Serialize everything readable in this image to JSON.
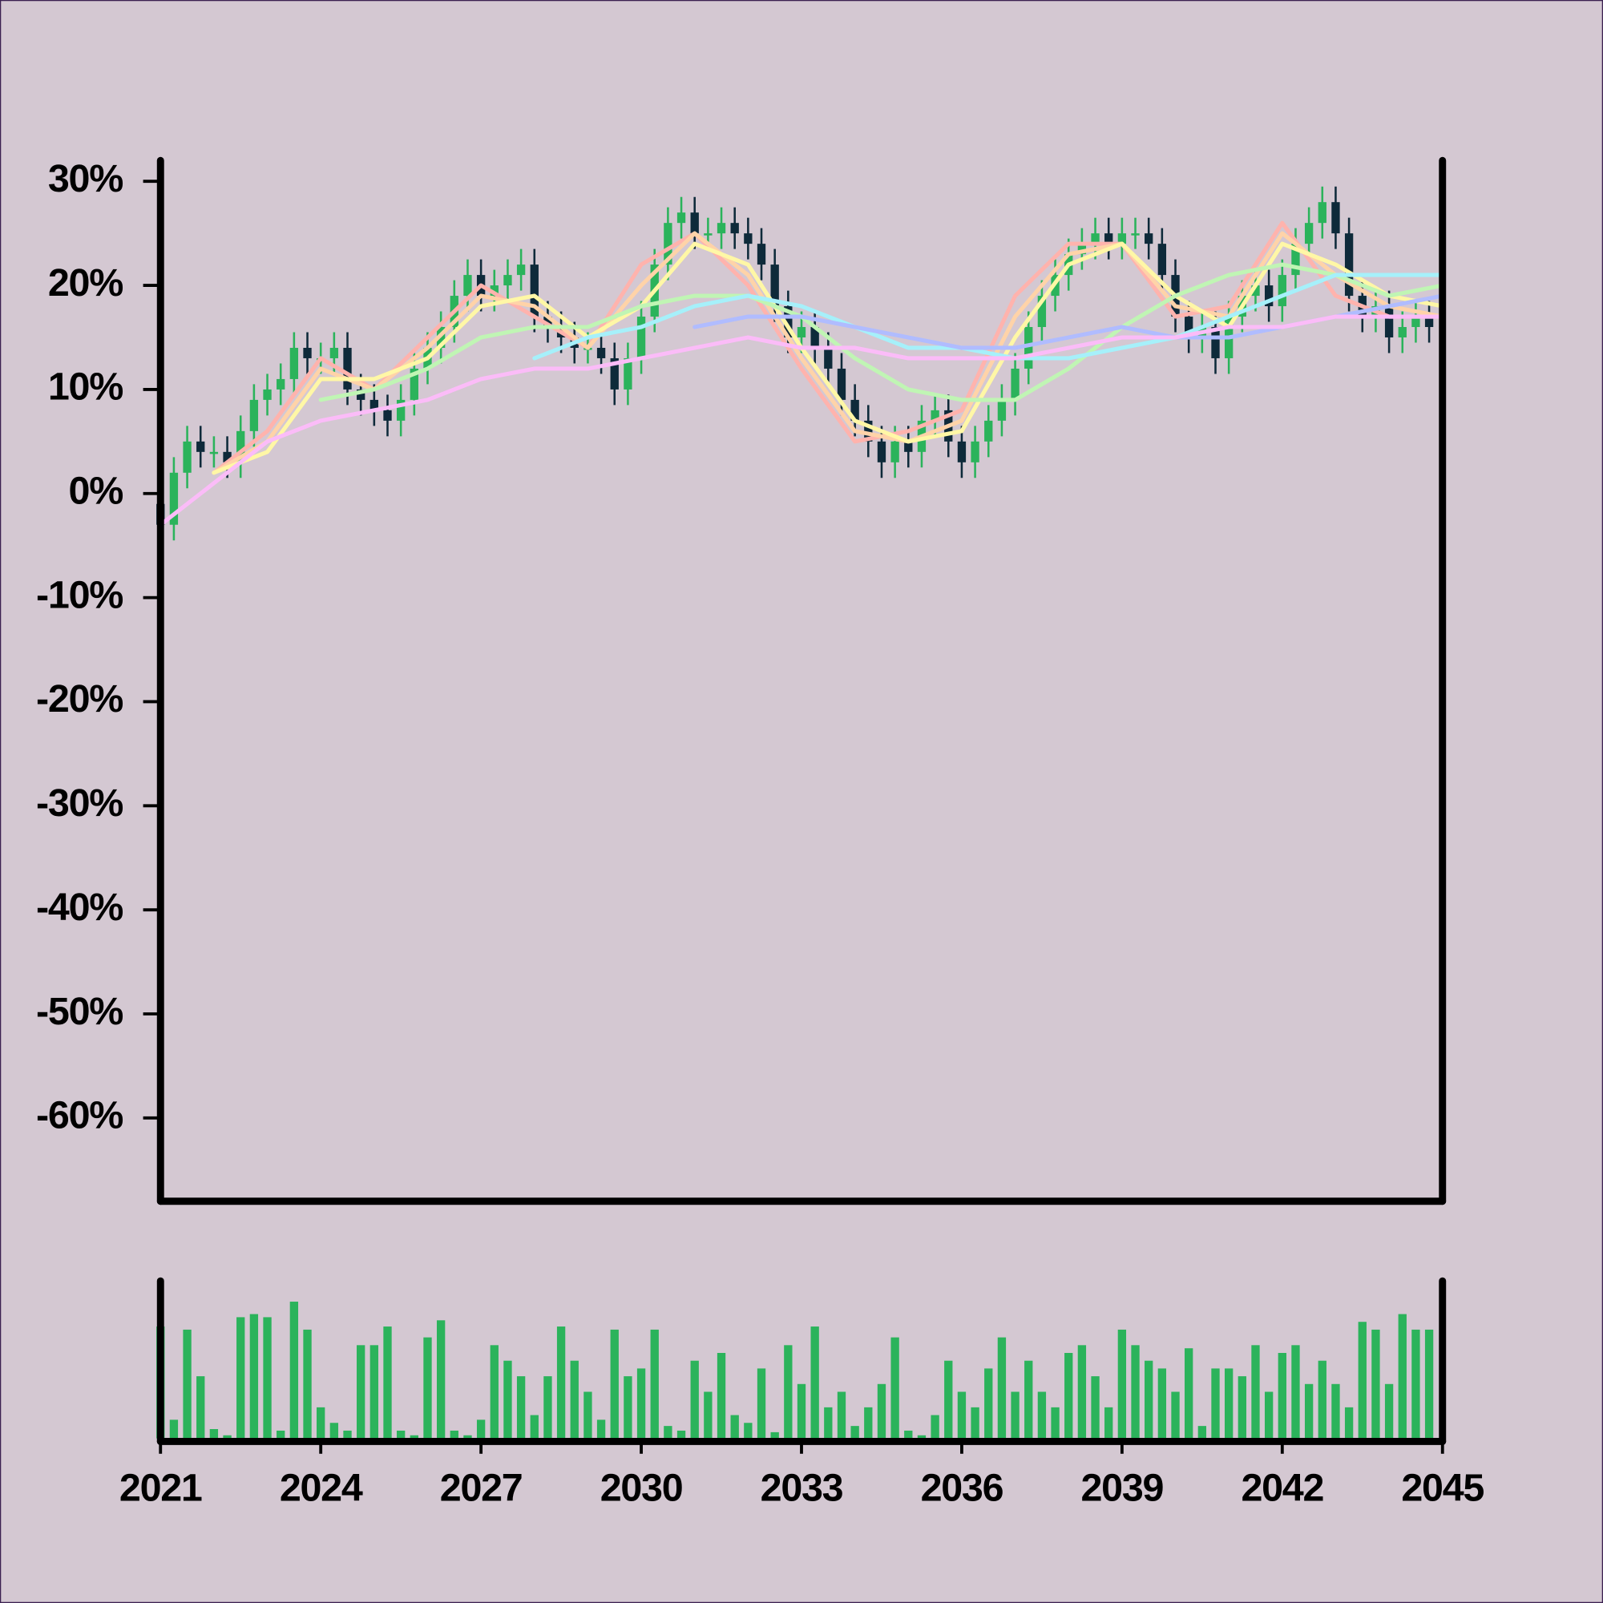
{
  "chart_data": {
    "type": "candlestick",
    "xlim": [
      2021,
      2045
    ],
    "xticks": [
      2021,
      2024,
      2027,
      2030,
      2033,
      2036,
      2039,
      2042,
      2045
    ],
    "ylim": [
      -68,
      32
    ],
    "yticks": [
      {
        "value": 30,
        "label": "30%"
      },
      {
        "value": 20,
        "label": "20%"
      },
      {
        "value": 10,
        "label": "10%"
      },
      {
        "value": 0,
        "label": "0%"
      },
      {
        "value": -10,
        "label": "-10%"
      },
      {
        "value": -20,
        "label": "-20%"
      },
      {
        "value": -30,
        "label": "-30%"
      },
      {
        "value": -40,
        "label": "-40%"
      },
      {
        "value": -50,
        "label": "-50%"
      },
      {
        "value": -60,
        "label": "-60%"
      }
    ],
    "up_color": "#2bb35b",
    "down_color": "#0e2a3a",
    "x": [
      2021,
      2021.25,
      2021.5,
      2021.75,
      2022,
      2022.25,
      2022.5,
      2022.75,
      2023,
      2023.25,
      2023.5,
      2023.75,
      2024,
      2024.25,
      2024.5,
      2024.75,
      2025,
      2025.25,
      2025.5,
      2025.75,
      2026,
      2026.25,
      2026.5,
      2026.75,
      2027,
      2027.25,
      2027.5,
      2027.75,
      2028,
      2028.25,
      2028.5,
      2028.75,
      2029,
      2029.25,
      2029.5,
      2029.75,
      2030,
      2030.25,
      2030.5,
      2030.75,
      2031,
      2031.25,
      2031.5,
      2031.75,
      2032,
      2032.25,
      2032.5,
      2032.75,
      2033,
      2033.25,
      2033.5,
      2033.75,
      2034,
      2034.25,
      2034.5,
      2034.75,
      2035,
      2035.25,
      2035.5,
      2035.75,
      2036,
      2036.25,
      2036.5,
      2036.75,
      2037,
      2037.25,
      2037.5,
      2037.75,
      2038,
      2038.25,
      2038.5,
      2038.75,
      2039,
      2039.25,
      2039.5,
      2039.75,
      2040,
      2040.25,
      2040.5,
      2040.75,
      2041,
      2041.25,
      2041.5,
      2041.75,
      2042,
      2042.25,
      2042.5,
      2042.75,
      2043,
      2043.25,
      2043.5,
      2043.75,
      2044,
      2044.25,
      2044.5,
      2044.75
    ],
    "open": [
      -1,
      -3,
      2,
      5,
      4,
      4,
      3,
      6,
      9,
      10,
      11,
      14,
      13,
      13,
      14,
      10,
      9,
      8,
      7,
      9,
      12,
      14,
      16,
      19,
      21,
      19,
      20,
      21,
      22,
      17,
      16,
      15,
      14,
      14,
      13,
      10,
      13,
      17,
      22,
      26,
      27,
      25,
      25,
      26,
      25,
      24,
      22,
      18,
      15,
      16,
      14,
      12,
      9,
      7,
      5,
      3,
      5,
      4,
      7,
      8,
      5,
      3,
      5,
      7,
      9,
      12,
      16,
      19,
      21,
      23,
      24,
      25,
      24,
      25,
      25,
      24,
      21,
      17,
      15,
      16,
      13,
      17,
      19,
      20,
      18,
      21,
      24,
      26,
      28,
      25,
      19,
      17,
      18,
      15,
      16,
      17
    ],
    "high": [
      0.5,
      3.5,
      6.5,
      6.5,
      5.5,
      5.5,
      7.5,
      10.5,
      11.5,
      12.5,
      15.5,
      15.5,
      14.5,
      15.5,
      15.5,
      11.5,
      10.5,
      9.5,
      10.5,
      13.5,
      15.5,
      17.5,
      20.5,
      22.5,
      22.5,
      21.5,
      22.5,
      23.5,
      23.5,
      18.5,
      17.5,
      16.5,
      15.5,
      15.5,
      14.5,
      14.5,
      18.5,
      23.5,
      27.5,
      28.5,
      28.5,
      26.5,
      27.5,
      27.5,
      26.5,
      25.5,
      23.5,
      19.5,
      17.5,
      17.5,
      15.5,
      13.5,
      10.5,
      8.5,
      6.5,
      6.5,
      6.5,
      8.5,
      9.5,
      9.5,
      6.5,
      6.5,
      8.5,
      10.5,
      13.5,
      17.5,
      20.5,
      22.5,
      24.5,
      25.5,
      26.5,
      26.5,
      26.5,
      26.5,
      26.5,
      25.5,
      22.5,
      18.5,
      17.5,
      17.5,
      18.5,
      20.5,
      21.5,
      21.5,
      22.5,
      25.5,
      27.5,
      29.5,
      29.5,
      26.5,
      20.5,
      19.5,
      19.5,
      17.5,
      18.5,
      18.5
    ],
    "low": [
      -4.5,
      -4.5,
      0.5,
      2.5,
      2.5,
      1.5,
      1.5,
      4.5,
      7.5,
      8.5,
      9.5,
      11.5,
      11.5,
      11.5,
      8.5,
      7.5,
      6.5,
      5.5,
      5.5,
      7.5,
      10.5,
      12.5,
      14.5,
      17.5,
      17.5,
      17.5,
      18.5,
      19.5,
      15.5,
      14.5,
      13.5,
      12.5,
      12.5,
      11.5,
      8.5,
      8.5,
      11.5,
      15.5,
      20.5,
      24.5,
      23.5,
      23.5,
      23.5,
      23.5,
      22.5,
      20.5,
      16.5,
      13.5,
      13.5,
      12.5,
      10.5,
      7.5,
      5.5,
      3.5,
      1.5,
      1.5,
      2.5,
      2.5,
      5.5,
      3.5,
      1.5,
      1.5,
      3.5,
      5.5,
      7.5,
      10.5,
      14.5,
      17.5,
      19.5,
      21.5,
      22.5,
      22.5,
      22.5,
      23.5,
      22.5,
      19.5,
      15.5,
      13.5,
      13.5,
      11.5,
      11.5,
      15.5,
      17.5,
      16.5,
      16.5,
      19.5,
      22.5,
      24.5,
      23.5,
      17.5,
      15.5,
      15.5,
      13.5,
      13.5,
      14.5,
      14.5
    ],
    "close": [
      -3,
      2,
      5,
      4,
      4,
      3,
      6,
      9,
      10,
      11,
      14,
      13,
      13,
      14,
      10,
      9,
      8,
      7,
      9,
      12,
      14,
      16,
      19,
      21,
      19,
      20,
      21,
      22,
      17,
      16,
      15,
      14,
      14,
      13,
      10,
      13,
      17,
      22,
      26,
      27,
      25,
      25,
      26,
      25,
      24,
      22,
      18,
      15,
      16,
      14,
      12,
      9,
      7,
      5,
      3,
      5,
      4,
      7,
      8,
      5,
      3,
      5,
      7,
      9,
      12,
      16,
      19,
      21,
      23,
      24,
      25,
      24,
      25,
      25,
      24,
      21,
      17,
      15,
      16,
      13,
      17,
      19,
      20,
      18,
      21,
      24,
      26,
      28,
      25,
      19,
      17,
      18,
      15,
      16,
      17,
      16
    ],
    "volume": [
      72,
      12,
      70,
      40,
      6,
      2,
      78,
      80,
      78,
      5,
      88,
      70,
      20,
      10,
      5,
      60,
      60,
      72,
      5,
      2,
      65,
      76,
      5,
      2,
      12,
      60,
      50,
      40,
      15,
      40,
      72,
      50,
      30,
      12,
      70,
      40,
      45,
      70,
      8,
      5,
      50,
      30,
      55,
      15,
      10,
      45,
      4,
      60,
      35,
      72,
      20,
      30,
      8,
      20,
      35,
      65,
      5,
      2,
      15,
      50,
      30,
      20,
      45,
      65,
      30,
      50,
      30,
      20,
      55,
      60,
      40,
      20,
      70,
      60,
      50,
      45,
      30,
      58,
      8,
      45,
      45,
      40,
      60,
      30,
      55,
      60,
      35,
      50,
      35,
      20,
      75,
      70,
      35,
      80,
      70,
      70
    ],
    "volume_color": "#2bb35b",
    "volume_ylim": [
      0,
      100
    ],
    "lines_x": [
      2021,
      2022,
      2023,
      2024,
      2025,
      2026,
      2027,
      2028,
      2029,
      2030,
      2031,
      2032,
      2033,
      2034,
      2035,
      2036,
      2037,
      2038,
      2039,
      2040,
      2041,
      2042,
      2043,
      2044,
      2045
    ],
    "lines": [
      {
        "color": "#ffb3ad",
        "values": [
          null,
          2,
          6,
          13,
          10,
          15,
          20,
          17,
          14,
          22,
          25,
          20,
          12,
          5,
          6,
          8,
          19,
          24,
          24,
          17,
          18,
          26,
          19,
          17,
          17
        ]
      },
      {
        "color": "#ffd3a8",
        "values": [
          null,
          2,
          5,
          12,
          10,
          14,
          19,
          18,
          14,
          20,
          25,
          21,
          13,
          6,
          5,
          7,
          17,
          23,
          24,
          18,
          17,
          25,
          21,
          18,
          17
        ]
      },
      {
        "color": "#fff7a6",
        "values": [
          null,
          2,
          4,
          11,
          11,
          13,
          18,
          19,
          15,
          18,
          24,
          22,
          14,
          7,
          5,
          6,
          15,
          22,
          24,
          19,
          16,
          24,
          22,
          19,
          18
        ]
      },
      {
        "color": "#c0f5b4",
        "values": [
          null,
          null,
          null,
          9,
          10,
          12,
          15,
          16,
          16,
          18,
          19,
          19,
          17,
          13,
          10,
          9,
          9,
          12,
          16,
          19,
          21,
          22,
          21,
          19,
          20
        ]
      },
      {
        "color": "#a6f0fa",
        "values": [
          null,
          null,
          null,
          null,
          null,
          null,
          null,
          13,
          15,
          16,
          18,
          19,
          18,
          16,
          14,
          14,
          13,
          13,
          14,
          15,
          17,
          19,
          21,
          21,
          21
        ]
      },
      {
        "color": "#b0bcff",
        "values": [
          null,
          null,
          null,
          null,
          null,
          null,
          null,
          null,
          null,
          null,
          16,
          17,
          17,
          16,
          15,
          14,
          14,
          15,
          16,
          15,
          15,
          16,
          17,
          18,
          19
        ]
      },
      {
        "color": "#fbbcf8",
        "values": [
          -3,
          1,
          5,
          7,
          8,
          9,
          11,
          12,
          12,
          13,
          14,
          15,
          14,
          14,
          13,
          13,
          13,
          14,
          15,
          15,
          16,
          16,
          17,
          17,
          17
        ]
      }
    ]
  }
}
